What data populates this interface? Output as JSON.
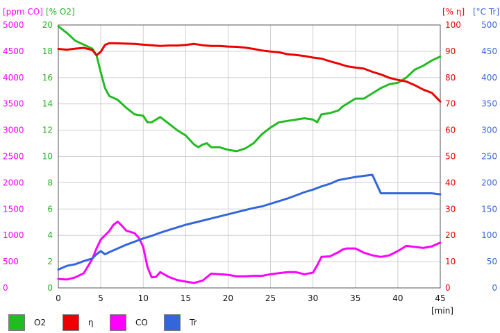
{
  "chart_data": {
    "type": "line",
    "xlabel": "[min]",
    "xlim": [
      0,
      45
    ],
    "x_ticks": [
      "0",
      "5",
      "10",
      "15",
      "20",
      "25",
      "30",
      "35",
      "40",
      "45"
    ],
    "grid": true,
    "legend_placement": "bottom",
    "axes": {
      "co": {
        "label": "[ppm CO]",
        "side": "left-outer",
        "color": "#ff00ff",
        "lim": [
          0,
          5000
        ],
        "ticks": [
          "0",
          "500",
          "1000",
          "1500",
          "2000",
          "2500",
          "3000",
          "3500",
          "4000",
          "4500",
          "5000"
        ]
      },
      "o2": {
        "label": "[% O2]",
        "side": "left-inner",
        "color": "#22b022",
        "lim": [
          0,
          20
        ],
        "ticks": [
          "0",
          "2",
          "4",
          "6",
          "8",
          "10",
          "12",
          "14",
          "16",
          "18",
          "20"
        ]
      },
      "eta": {
        "label": "[% η]",
        "side": "right-inner",
        "color": "#ee0000",
        "lim": [
          0,
          100
        ],
        "ticks": [
          "0",
          "10",
          "20",
          "30",
          "40",
          "50",
          "60",
          "70",
          "80",
          "90",
          "100"
        ]
      },
      "tr": {
        "label": "[°C Tr]",
        "side": "right-outer",
        "color": "#3a66dd",
        "lim": [
          0,
          500
        ],
        "ticks": [
          "0",
          "50",
          "100",
          "150",
          "200",
          "250",
          "300",
          "350",
          "400",
          "450",
          "500"
        ]
      }
    },
    "series": [
      {
        "name": "O2",
        "axis": "o2",
        "color": "#22bb22",
        "x": [
          0,
          1,
          2,
          3,
          4,
          4.5,
          5,
          5.5,
          6,
          7,
          8,
          9,
          10,
          10.5,
          11,
          12,
          13,
          14,
          15,
          16,
          16.5,
          17,
          17.5,
          18,
          19,
          20,
          21,
          22,
          23,
          24,
          25,
          26,
          27,
          28,
          29,
          30,
          30.5,
          31,
          32,
          33,
          33.5,
          34,
          35,
          36,
          37,
          38,
          39,
          40,
          41,
          42,
          43,
          44,
          45
        ],
        "y": [
          19.9,
          19.4,
          18.8,
          18.5,
          18.2,
          17.7,
          16.4,
          15.2,
          14.6,
          14.3,
          13.7,
          13.2,
          13.1,
          12.6,
          12.6,
          13.0,
          12.5,
          12.0,
          11.6,
          10.9,
          10.7,
          10.9,
          11.0,
          10.7,
          10.7,
          10.5,
          10.4,
          10.6,
          11.0,
          11.7,
          12.2,
          12.6,
          12.7,
          12.8,
          12.9,
          12.8,
          12.6,
          13.2,
          13.3,
          13.5,
          13.8,
          14.0,
          14.4,
          14.4,
          14.8,
          15.2,
          15.5,
          15.6,
          16.0,
          16.6,
          16.9,
          17.3,
          17.6
        ]
      },
      {
        "name": "η",
        "axis": "eta",
        "color": "#ee0000",
        "x": [
          0,
          1,
          2,
          3,
          4,
          4.5,
          5,
          5.5,
          6,
          7,
          8,
          9,
          10,
          11,
          12,
          13,
          14,
          15,
          16,
          17,
          18,
          19,
          20,
          21,
          22,
          23,
          24,
          25,
          26,
          27,
          28,
          29,
          30,
          31,
          32,
          33,
          34,
          35,
          36,
          37,
          38,
          39,
          40,
          41,
          42,
          43,
          44,
          45
        ],
        "y": [
          90.9,
          90.6,
          91.0,
          91.3,
          90.5,
          88.5,
          89.8,
          92.4,
          93.1,
          93.0,
          92.9,
          92.8,
          92.5,
          92.3,
          92.0,
          92.2,
          92.2,
          92.4,
          92.8,
          92.3,
          92.0,
          92.0,
          91.8,
          91.7,
          91.4,
          90.9,
          90.3,
          89.9,
          89.6,
          88.9,
          88.6,
          88.2,
          87.6,
          87.2,
          86.2,
          85.3,
          84.3,
          83.8,
          83.4,
          82.2,
          81.2,
          79.9,
          79.1,
          78.5,
          77.1,
          75.4,
          74.2,
          70.9
        ]
      },
      {
        "name": "CO",
        "axis": "co",
        "color": "#ff00ff",
        "x": [
          0,
          1,
          2,
          3,
          4,
          4.5,
          5,
          5.5,
          6,
          6.5,
          7,
          7.5,
          8,
          9,
          9.5,
          10,
          10.5,
          11,
          11.5,
          12,
          13,
          14,
          15,
          16,
          17,
          18,
          19,
          20,
          21,
          22,
          23,
          24,
          25,
          26,
          27,
          28,
          29,
          30,
          30.5,
          31,
          32,
          33,
          33.5,
          34,
          35,
          36,
          37,
          38,
          39,
          40,
          41,
          42,
          43,
          44,
          45
        ],
        "y": [
          170,
          160,
          200,
          280,
          550,
          750,
          920,
          1000,
          1080,
          1200,
          1260,
          1180,
          1090,
          1040,
          950,
          780,
          400,
          200,
          210,
          300,
          210,
          150,
          120,
          95,
          140,
          270,
          260,
          250,
          220,
          220,
          230,
          230,
          260,
          280,
          300,
          300,
          260,
          290,
          430,
          590,
          600,
          680,
          730,
          750,
          750,
          670,
          620,
          590,
          620,
          700,
          800,
          780,
          760,
          790,
          860
        ]
      },
      {
        "name": "Tr",
        "axis": "tr",
        "color": "#3366dd",
        "x": [
          0,
          1,
          2,
          3,
          4,
          4.5,
          5,
          5.5,
          6,
          7,
          8,
          9,
          10,
          11,
          12,
          13,
          14,
          15,
          16,
          17,
          18,
          19,
          20,
          21,
          22,
          23,
          24,
          25,
          26,
          27,
          28,
          29,
          30,
          31,
          32,
          33,
          34,
          35,
          36,
          37,
          38,
          39,
          40,
          41,
          42,
          43,
          44,
          45
        ],
        "y": [
          35,
          42,
          45,
          51,
          56,
          64,
          70,
          64,
          68,
          75,
          82,
          88,
          94,
          99,
          105,
          110,
          115,
          120,
          124,
          128,
          132,
          136,
          140,
          144,
          148,
          152,
          155,
          160,
          165,
          170,
          176,
          182,
          187,
          193,
          198,
          205,
          208,
          211,
          213,
          215,
          180,
          180,
          180,
          180,
          180,
          180,
          180,
          178
        ]
      }
    ]
  },
  "legend": [
    {
      "label": "O2",
      "color": "#22bb22"
    },
    {
      "label": "η",
      "color": "#ee0000"
    },
    {
      "label": "CO",
      "color": "#ff00ff"
    },
    {
      "label": "Tr",
      "color": "#3366dd"
    }
  ]
}
